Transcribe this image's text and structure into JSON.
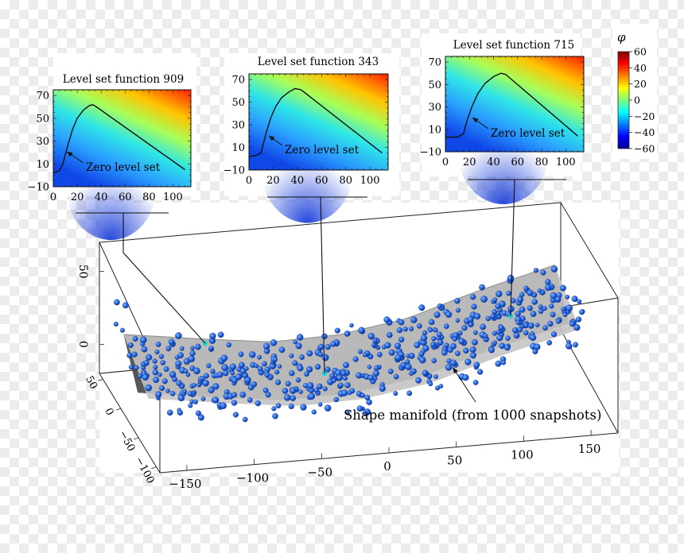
{
  "colors": {
    "sphere": "#1f5ed6",
    "sphere_highlight": "#6fa6ff",
    "manifold_light": "#bdbdbd",
    "manifold_dark": "#2a2a2a",
    "marker": "#22d3d3"
  },
  "colorbar": {
    "label": "φ",
    "ticks": [
      "60",
      "40",
      "20",
      "0",
      "−20",
      "−40",
      "−60"
    ],
    "range": [
      -60,
      60
    ],
    "colormap": "jet"
  },
  "insets": [
    {
      "title": "Level set function 909",
      "annotation": "Zero level set",
      "yticks": [
        "70",
        "50",
        "30",
        "10",
        "−10"
      ],
      "xticks": [
        "0",
        "20",
        "40",
        "60",
        "80",
        "100"
      ]
    },
    {
      "title": "Level set function 343",
      "annotation": "Zero level set",
      "yticks": [
        "70",
        "50",
        "30",
        "10",
        "−10"
      ],
      "xticks": [
        "0",
        "20",
        "40",
        "60",
        "80",
        "100"
      ]
    },
    {
      "title": "Level set function 715",
      "annotation": "Zero level set",
      "yticks": [
        "70",
        "50",
        "30",
        "10",
        "−10"
      ],
      "xticks": [
        "0",
        "20",
        "40",
        "60",
        "80",
        "100"
      ]
    }
  ],
  "main_plot": {
    "manifold_label": "Shape manifold (from 1000 snapshots)",
    "x_ticks": [
      "−150",
      "−100",
      "−50",
      "0",
      "50",
      "100",
      "150"
    ],
    "y_ticks": [
      "50",
      "0",
      "−50",
      "−100"
    ],
    "z_ticks": [
      "50",
      "0"
    ]
  },
  "chart_data": [
    {
      "type": "heatmap",
      "title": "Level set function 909",
      "xlim": [
        0,
        115
      ],
      "ylim": [
        -10,
        75
      ],
      "zero_level_set": {
        "x": [
          0,
          5,
          8,
          12,
          16,
          20,
          25,
          30,
          33,
          36,
          110
        ],
        "y": [
          2,
          4,
          10,
          26,
          40,
          50,
          57,
          61,
          62,
          60,
          5
        ]
      },
      "annotation": "Zero level set"
    },
    {
      "type": "heatmap",
      "title": "Level set function 343",
      "xlim": [
        0,
        115
      ],
      "ylim": [
        -10,
        75
      ],
      "zero_level_set": {
        "x": [
          0,
          6,
          10,
          14,
          18,
          22,
          27,
          33,
          38,
          43,
          110
        ],
        "y": [
          2,
          3,
          5,
          22,
          36,
          46,
          54,
          59,
          62,
          61,
          5
        ]
      },
      "annotation": "Zero level set"
    },
    {
      "type": "heatmap",
      "title": "Level set function 715",
      "xlim": [
        0,
        115
      ],
      "ylim": [
        -10,
        75
      ],
      "zero_level_set": {
        "x": [
          0,
          10,
          15,
          18,
          22,
          27,
          33,
          40,
          46,
          50,
          110
        ],
        "y": [
          3,
          3,
          6,
          18,
          30,
          42,
          51,
          57,
          60,
          59,
          4
        ]
      },
      "annotation": "Zero level set"
    },
    {
      "type": "scatter",
      "title": "Shape manifold (from 1000 snapshots)",
      "projection": "3d",
      "xlim": [
        -170,
        170
      ],
      "ylim": [
        -110,
        60
      ],
      "zlim": [
        -20,
        70
      ],
      "x_ticks": [
        -150,
        -100,
        -50,
        0,
        50,
        100,
        150
      ],
      "y_ticks": [
        50,
        0,
        -50,
        -100
      ],
      "z_ticks": [
        50,
        0
      ],
      "n_snapshots": 1000,
      "surface_x": [
        -160,
        -100,
        -50,
        0,
        50,
        100,
        160
      ],
      "surface_z": [
        8,
        0,
        -6,
        -5,
        2,
        16,
        30
      ],
      "highlighted_points": [
        "909",
        "343",
        "715"
      ]
    }
  ]
}
